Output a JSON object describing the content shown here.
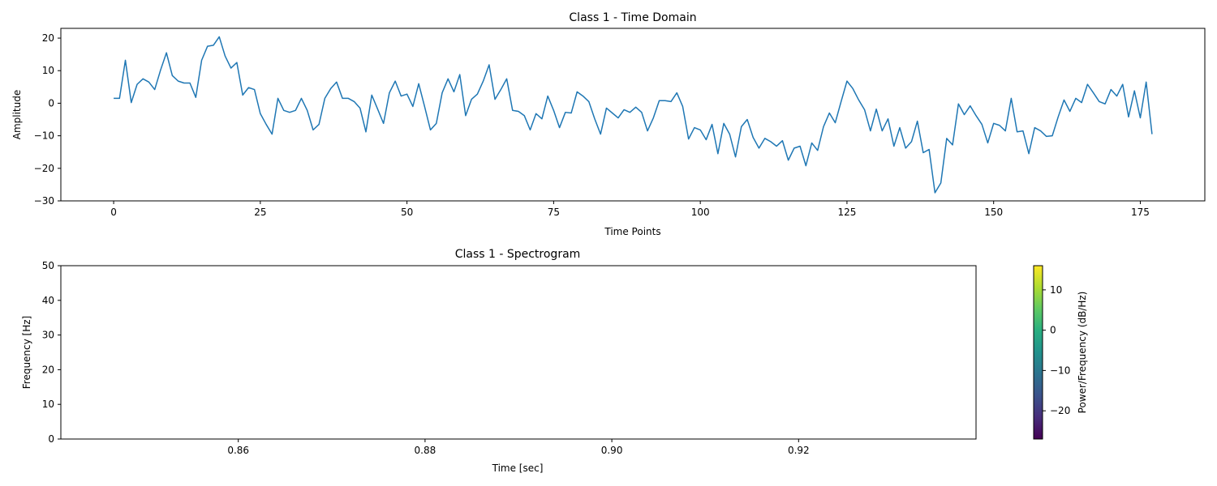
{
  "chart_data": [
    {
      "type": "line",
      "title": "Class 1 - Time Domain",
      "xlabel": "Time Points",
      "ylabel": "Amplitude",
      "xlim": [
        -9,
        186
      ],
      "ylim": [
        -30,
        23
      ],
      "xticks": [
        0,
        25,
        50,
        75,
        100,
        125,
        150,
        175
      ],
      "yticks": [
        -30,
        -20,
        -10,
        0,
        10,
        20
      ],
      "grid": false,
      "color": "#1f77b4",
      "series": [
        {
          "values": [
            1.5,
            1.5,
            13.2,
            0.2,
            5.8,
            7.5,
            6.5,
            4.2,
            10.2,
            15.5,
            8.5,
            6.8,
            6.2,
            6.2,
            1.8,
            13.2,
            17.5,
            17.8,
            20.4,
            14.5,
            10.8,
            12.5,
            2.5,
            4.8,
            4.2,
            -3.2,
            -6.5,
            -9.5,
            1.5,
            -2.2,
            -2.8,
            -2.2,
            1.5,
            -2.2,
            -8.2,
            -6.5,
            1.5,
            4.5,
            6.5,
            1.5,
            1.5,
            0.5,
            -1.5,
            -8.8,
            2.5,
            -1.8,
            -6.2,
            3.2,
            6.8,
            2.2,
            2.8,
            -1.0,
            6.0,
            -1.0,
            -8.2,
            -6.2,
            3.2,
            7.5,
            3.5,
            8.8,
            -3.8,
            1.2,
            2.8,
            6.8,
            11.8,
            1.2,
            4.2,
            7.5,
            -2.2,
            -2.5,
            -3.8,
            -8.2,
            -3.2,
            -4.8,
            2.2,
            -2.2,
            -7.5,
            -2.8,
            -3.0,
            3.5,
            2.2,
            0.5,
            -4.8,
            -9.5,
            -1.5,
            -3.0,
            -4.5,
            -2.0,
            -2.8,
            -1.2,
            -2.8,
            -8.5,
            -4.5,
            0.8,
            0.8,
            0.5,
            3.2,
            -1.0,
            -11.0,
            -7.5,
            -8.2,
            -11.2,
            -6.5,
            -15.5,
            -6.2,
            -9.5,
            -16.5,
            -7.2,
            -5.0,
            -10.5,
            -13.8,
            -10.8,
            -11.8,
            -13.2,
            -11.5,
            -17.5,
            -13.8,
            -13.2,
            -19.2,
            -12.2,
            -14.5,
            -7.2,
            -3.0,
            -6.0,
            0.5,
            6.8,
            4.5,
            1.0,
            -2.0,
            -8.5,
            -1.8,
            -8.5,
            -4.8,
            -13.2,
            -7.5,
            -13.8,
            -11.8,
            -5.5,
            -15.2,
            -14.2,
            -27.5,
            -24.5,
            -10.8,
            -12.8,
            -0.2,
            -3.5,
            -0.8,
            -3.8,
            -6.5,
            -12.2,
            -6.2,
            -6.8,
            -8.5,
            1.5,
            -8.8,
            -8.5,
            -15.5,
            -7.5,
            -8.5,
            -10.2,
            -10.0,
            -4.2,
            1.0,
            -2.5,
            1.5,
            0.2,
            5.8,
            3.2,
            0.5,
            -0.2,
            4.2,
            2.2,
            5.8,
            -4.2,
            3.8,
            -4.5,
            6.5,
            -9.5
          ]
        }
      ]
    },
    {
      "type": "heatmap",
      "title": "Class 1 - Spectrogram",
      "xlabel": "Time [sec]",
      "ylabel": "Frequency [Hz]",
      "xlim": [
        0.841,
        0.939
      ],
      "ylim": [
        0,
        50
      ],
      "xticks": [
        "0.86",
        "0.88",
        "0.90",
        "0.92"
      ],
      "xtick_values": [
        0.86,
        0.88,
        0.9,
        0.92
      ],
      "yticks": [
        0,
        10,
        20,
        30,
        40,
        50
      ],
      "grid": false,
      "colorbar": {
        "label": "Power/Frequency (dB/Hz)",
        "colormap": "viridis",
        "range": [
          -27,
          16
        ],
        "ticks": [
          -20,
          -10,
          0,
          10
        ]
      }
    }
  ]
}
